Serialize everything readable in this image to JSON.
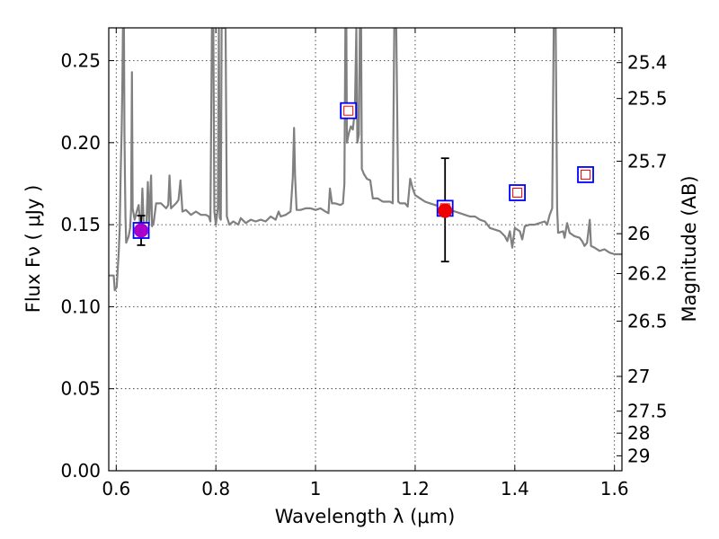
{
  "chart_data": {
    "type": "line",
    "title": "",
    "xlabel": "Wavelength  λ (μm)",
    "ylabel": "Flux  Fν  ( μJy )",
    "ylabel_right": "Magnitude (AB)",
    "xlim": [
      0.585,
      1.615
    ],
    "ylim": [
      0.0,
      0.27
    ],
    "grid": true,
    "x_ticks": [
      {
        "value": 0.6,
        "label": "0.6"
      },
      {
        "value": 0.8,
        "label": "0.8"
      },
      {
        "value": 1.0,
        "label": "1"
      },
      {
        "value": 1.2,
        "label": "1.2"
      },
      {
        "value": 1.4,
        "label": "1.4"
      },
      {
        "value": 1.6,
        "label": "1.6"
      }
    ],
    "y_ticks": [
      {
        "value": 0.0,
        "label": "0.00"
      },
      {
        "value": 0.05,
        "label": "0.05"
      },
      {
        "value": 0.1,
        "label": "0.10"
      },
      {
        "value": 0.15,
        "label": "0.15"
      },
      {
        "value": 0.2,
        "label": "0.20"
      },
      {
        "value": 0.25,
        "label": "0.25"
      }
    ],
    "right_ticks": [
      {
        "flux": 0.2488,
        "label": "25.4"
      },
      {
        "flux": 0.2269,
        "label": "25.5"
      },
      {
        "flux": 0.1887,
        "label": "25.7"
      },
      {
        "flux": 0.1445,
        "label": "26"
      },
      {
        "flux": 0.1202,
        "label": "26.2"
      },
      {
        "flux": 0.0912,
        "label": "26.5"
      },
      {
        "flux": 0.0575,
        "label": "27"
      },
      {
        "flux": 0.0363,
        "label": "27.5"
      },
      {
        "flux": 0.0229,
        "label": "28"
      },
      {
        "flux": 0.0091,
        "label": "29"
      }
    ],
    "series": [
      {
        "kind": "model-spectrum",
        "color": "#808080",
        "points": [
          [
            0.585,
            0.119
          ],
          [
            0.595,
            0.119
          ],
          [
            0.597,
            0.11
          ],
          [
            0.601,
            0.112
          ],
          [
            0.603,
            0.123
          ],
          [
            0.605,
            0.133
          ],
          [
            0.607,
            0.148
          ],
          [
            0.609,
            0.182
          ],
          [
            0.611,
            0.208
          ],
          [
            0.6125,
            0.238
          ],
          [
            0.6135,
            0.27
          ],
          [
            0.6155,
            0.27
          ],
          [
            0.6165,
            0.205
          ],
          [
            0.6175,
            0.18
          ],
          [
            0.6185,
            0.155
          ],
          [
            0.62,
            0.139
          ],
          [
            0.625,
            0.143
          ],
          [
            0.628,
            0.148
          ],
          [
            0.63,
            0.16
          ],
          [
            0.6315,
            0.243
          ],
          [
            0.633,
            0.16
          ],
          [
            0.637,
            0.153
          ],
          [
            0.642,
            0.159
          ],
          [
            0.645,
            0.162
          ],
          [
            0.648,
            0.15
          ],
          [
            0.65,
            0.148
          ],
          [
            0.6525,
            0.172
          ],
          [
            0.655,
            0.152
          ],
          [
            0.66,
            0.145
          ],
          [
            0.6635,
            0.176
          ],
          [
            0.666,
            0.151
          ],
          [
            0.67,
            0.18
          ],
          [
            0.672,
            0.149
          ],
          [
            0.675,
            0.151
          ],
          [
            0.68,
            0.163
          ],
          [
            0.69,
            0.163
          ],
          [
            0.7,
            0.16
          ],
          [
            0.7045,
            0.162
          ],
          [
            0.707,
            0.18
          ],
          [
            0.71,
            0.16
          ],
          [
            0.72,
            0.163
          ],
          [
            0.725,
            0.165
          ],
          [
            0.729,
            0.177
          ],
          [
            0.733,
            0.158
          ],
          [
            0.74,
            0.159
          ],
          [
            0.75,
            0.156
          ],
          [
            0.76,
            0.158
          ],
          [
            0.77,
            0.156
          ],
          [
            0.78,
            0.156
          ],
          [
            0.786,
            0.155
          ],
          [
            0.789,
            0.152
          ],
          [
            0.792,
            0.27
          ],
          [
            0.795,
            0.27
          ],
          [
            0.797,
            0.158
          ],
          [
            0.8,
            0.15
          ],
          [
            0.804,
            0.16
          ],
          [
            0.806,
            0.27
          ],
          [
            0.808,
            0.154
          ],
          [
            0.81,
            0.153
          ],
          [
            0.8115,
            0.27
          ],
          [
            0.8155,
            0.27
          ],
          [
            0.817,
            0.27
          ],
          [
            0.8195,
            0.27
          ],
          [
            0.822,
            0.155
          ],
          [
            0.827,
            0.15
          ],
          [
            0.835,
            0.152
          ],
          [
            0.845,
            0.15
          ],
          [
            0.85,
            0.154
          ],
          [
            0.86,
            0.151
          ],
          [
            0.87,
            0.153
          ],
          [
            0.88,
            0.152
          ],
          [
            0.89,
            0.153
          ],
          [
            0.9,
            0.152
          ],
          [
            0.91,
            0.155
          ],
          [
            0.92,
            0.153
          ],
          [
            0.926,
            0.158
          ],
          [
            0.93,
            0.155
          ],
          [
            0.94,
            0.156
          ],
          [
            0.95,
            0.158
          ],
          [
            0.9545,
            0.179
          ],
          [
            0.957,
            0.209
          ],
          [
            0.959,
            0.18
          ],
          [
            0.962,
            0.159
          ],
          [
            0.97,
            0.159
          ],
          [
            0.98,
            0.16
          ],
          [
            0.99,
            0.16
          ],
          [
            1.0,
            0.159
          ],
          [
            1.01,
            0.16
          ],
          [
            1.02,
            0.158
          ],
          [
            1.026,
            0.157
          ],
          [
            1.029,
            0.172
          ],
          [
            1.033,
            0.163
          ],
          [
            1.04,
            0.163
          ],
          [
            1.05,
            0.162
          ],
          [
            1.055,
            0.163
          ],
          [
            1.058,
            0.175
          ],
          [
            1.06,
            0.27
          ],
          [
            1.062,
            0.27
          ],
          [
            1.063,
            0.2
          ],
          [
            1.067,
            0.206
          ],
          [
            1.071,
            0.21
          ],
          [
            1.075,
            0.208
          ],
          [
            1.079,
            0.22
          ],
          [
            1.082,
            0.27
          ],
          [
            1.084,
            0.2
          ],
          [
            1.087,
            0.205
          ],
          [
            1.089,
            0.27
          ],
          [
            1.0915,
            0.27
          ],
          [
            1.093,
            0.184
          ],
          [
            1.097,
            0.181
          ],
          [
            1.103,
            0.178
          ],
          [
            1.11,
            0.177
          ],
          [
            1.115,
            0.166
          ],
          [
            1.125,
            0.166
          ],
          [
            1.135,
            0.164
          ],
          [
            1.145,
            0.164
          ],
          [
            1.15,
            0.164
          ],
          [
            1.155,
            0.163
          ],
          [
            1.158,
            0.27
          ],
          [
            1.162,
            0.27
          ],
          [
            1.166,
            0.164
          ],
          [
            1.17,
            0.163
          ],
          [
            1.18,
            0.163
          ],
          [
            1.185,
            0.161
          ],
          [
            1.19,
            0.178
          ],
          [
            1.195,
            0.172
          ],
          [
            1.2,
            0.168
          ],
          [
            1.21,
            0.166
          ],
          [
            1.22,
            0.164
          ],
          [
            1.23,
            0.163
          ],
          [
            1.24,
            0.162
          ],
          [
            1.25,
            0.161
          ],
          [
            1.26,
            0.161
          ],
          [
            1.27,
            0.159
          ],
          [
            1.28,
            0.158
          ],
          [
            1.29,
            0.157
          ],
          [
            1.3,
            0.156
          ],
          [
            1.31,
            0.155
          ],
          [
            1.32,
            0.155
          ],
          [
            1.33,
            0.153
          ],
          [
            1.34,
            0.152
          ],
          [
            1.345,
            0.15
          ],
          [
            1.35,
            0.148
          ],
          [
            1.36,
            0.147
          ],
          [
            1.37,
            0.146
          ],
          [
            1.38,
            0.143
          ],
          [
            1.385,
            0.14
          ],
          [
            1.39,
            0.146
          ],
          [
            1.395,
            0.136
          ],
          [
            1.4,
            0.148
          ],
          [
            1.41,
            0.146
          ],
          [
            1.415,
            0.141
          ],
          [
            1.42,
            0.149
          ],
          [
            1.43,
            0.15
          ],
          [
            1.44,
            0.15
          ],
          [
            1.45,
            0.151
          ],
          [
            1.46,
            0.152
          ],
          [
            1.465,
            0.15
          ],
          [
            1.47,
            0.156
          ],
          [
            1.475,
            0.16
          ],
          [
            1.478,
            0.27
          ],
          [
            1.482,
            0.27
          ],
          [
            1.485,
            0.16
          ],
          [
            1.487,
            0.145
          ],
          [
            1.497,
            0.146
          ],
          [
            1.5,
            0.142
          ],
          [
            1.505,
            0.151
          ],
          [
            1.51,
            0.145
          ],
          [
            1.52,
            0.143
          ],
          [
            1.53,
            0.142
          ],
          [
            1.535,
            0.14
          ],
          [
            1.54,
            0.137
          ],
          [
            1.545,
            0.139
          ],
          [
            1.548,
            0.147
          ],
          [
            1.5505,
            0.153
          ],
          [
            1.553,
            0.137
          ],
          [
            1.56,
            0.136
          ],
          [
            1.57,
            0.134
          ],
          [
            1.58,
            0.135
          ],
          [
            1.59,
            0.133
          ],
          [
            1.6,
            0.132
          ],
          [
            1.605,
            0.132
          ],
          [
            1.615,
            0.132
          ]
        ]
      }
    ],
    "model_photometry": [
      {
        "x": 0.65,
        "y": 0.1465,
        "edge": "#0000ff",
        "fill": "#ffffff",
        "inner": "#ff0000"
      },
      {
        "x": 1.066,
        "y": 0.2195,
        "edge": "#0000ff",
        "fill": "#ffffff",
        "inner": "#ff0000"
      },
      {
        "x": 1.26,
        "y": 0.16,
        "edge": "#0000ff",
        "fill": "#ffffff",
        "inner": "#ff0000"
      },
      {
        "x": 1.405,
        "y": 0.1695,
        "edge": "#0000ff",
        "fill": "#ffffff",
        "inner": "#ff0000"
      },
      {
        "x": 1.542,
        "y": 0.1805,
        "edge": "#0000ff",
        "fill": "#ffffff",
        "inner": "#ff0000"
      }
    ],
    "observed_points": [
      {
        "x": 0.65,
        "y": 0.1465,
        "yerr_low": 0.1375,
        "yerr_high": 0.1555,
        "color": "#aa00cc"
      },
      {
        "x": 1.26,
        "y": 0.1585,
        "yerr_low": 0.1275,
        "yerr_high": 0.1905,
        "color": "#ee0000"
      }
    ]
  }
}
